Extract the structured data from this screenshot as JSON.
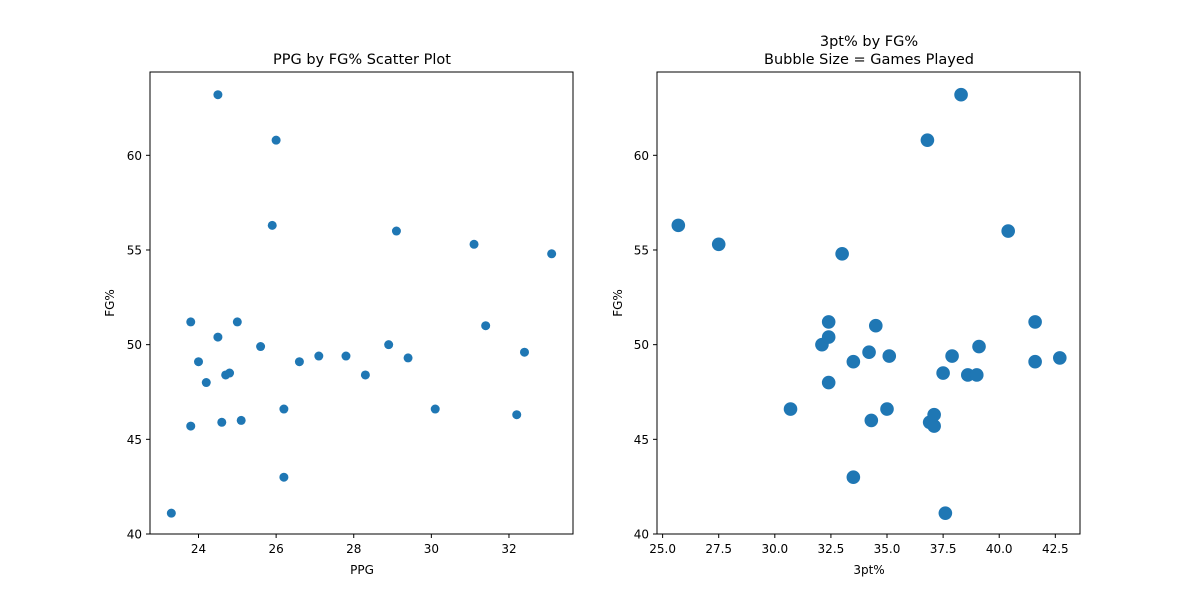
{
  "chart_data": [
    {
      "type": "scatter",
      "title": "PPG by FG% Scatter Plot",
      "xlabel": "PPG",
      "ylabel": "FG%",
      "xlim": [
        22.75,
        33.65
      ],
      "ylim": [
        40,
        64.4
      ],
      "xticks": [
        24,
        26,
        28,
        30,
        32
      ],
      "xtick_labels": [
        "24",
        "26",
        "28",
        "30",
        "32"
      ],
      "yticks": [
        40,
        45,
        50,
        55,
        60
      ],
      "ytick_labels": [
        "40",
        "45",
        "50",
        "55",
        "60"
      ],
      "color": "#1f77b4",
      "points": [
        {
          "x": 23.3,
          "y": 41.1
        },
        {
          "x": 23.8,
          "y": 45.7
        },
        {
          "x": 23.8,
          "y": 51.2
        },
        {
          "x": 24.0,
          "y": 49.1
        },
        {
          "x": 24.2,
          "y": 48.0
        },
        {
          "x": 24.5,
          "y": 50.4
        },
        {
          "x": 24.5,
          "y": 63.2
        },
        {
          "x": 24.6,
          "y": 45.9
        },
        {
          "x": 24.7,
          "y": 48.4
        },
        {
          "x": 24.8,
          "y": 48.5
        },
        {
          "x": 25.0,
          "y": 51.2
        },
        {
          "x": 25.1,
          "y": 46.0
        },
        {
          "x": 25.6,
          "y": 49.9
        },
        {
          "x": 25.9,
          "y": 56.3
        },
        {
          "x": 26.0,
          "y": 60.8
        },
        {
          "x": 26.2,
          "y": 46.6
        },
        {
          "x": 26.2,
          "y": 43.0
        },
        {
          "x": 26.6,
          "y": 49.1
        },
        {
          "x": 27.1,
          "y": 49.4
        },
        {
          "x": 27.8,
          "y": 49.4
        },
        {
          "x": 28.3,
          "y": 48.4
        },
        {
          "x": 28.9,
          "y": 50.0
        },
        {
          "x": 29.1,
          "y": 56.0
        },
        {
          "x": 29.4,
          "y": 49.3
        },
        {
          "x": 30.1,
          "y": 46.6
        },
        {
          "x": 31.1,
          "y": 55.3
        },
        {
          "x": 31.4,
          "y": 51.0
        },
        {
          "x": 32.2,
          "y": 46.3
        },
        {
          "x": 32.4,
          "y": 49.6
        },
        {
          "x": 33.1,
          "y": 54.8
        }
      ]
    },
    {
      "type": "scatter",
      "title": "3pt% by FG%\nBubble Size = Games Played",
      "title_lines": [
        "3pt% by FG%",
        "Bubble Size = Games Played"
      ],
      "xlabel": "3pt%",
      "ylabel": "FG%",
      "xlim": [
        24.75,
        43.6
      ],
      "ylim": [
        40,
        64.4
      ],
      "xticks": [
        25,
        27.5,
        30,
        32.5,
        35,
        37.5,
        40,
        42.5
      ],
      "xtick_labels": [
        "25.0",
        "27.5",
        "30.0",
        "32.5",
        "35.0",
        "37.5",
        "40.0",
        "42.5"
      ],
      "yticks": [
        40,
        45,
        50,
        55,
        60
      ],
      "ytick_labels": [
        "40",
        "45",
        "50",
        "55",
        "60"
      ],
      "color": "#1f77b4",
      "points": [
        {
          "x": 25.7,
          "y": 56.3
        },
        {
          "x": 27.5,
          "y": 55.3
        },
        {
          "x": 30.7,
          "y": 46.6
        },
        {
          "x": 32.1,
          "y": 50.0
        },
        {
          "x": 32.4,
          "y": 51.2
        },
        {
          "x": 32.4,
          "y": 50.4
        },
        {
          "x": 32.4,
          "y": 48.0
        },
        {
          "x": 33.0,
          "y": 54.8
        },
        {
          "x": 33.5,
          "y": 49.1
        },
        {
          "x": 33.5,
          "y": 43.0
        },
        {
          "x": 34.2,
          "y": 49.6
        },
        {
          "x": 34.3,
          "y": 46.0
        },
        {
          "x": 34.5,
          "y": 51.0
        },
        {
          "x": 35.0,
          "y": 46.6
        },
        {
          "x": 35.1,
          "y": 49.4
        },
        {
          "x": 36.8,
          "y": 60.8
        },
        {
          "x": 36.9,
          "y": 45.9
        },
        {
          "x": 37.1,
          "y": 45.7
        },
        {
          "x": 37.1,
          "y": 46.3
        },
        {
          "x": 37.5,
          "y": 48.5
        },
        {
          "x": 37.6,
          "y": 41.1
        },
        {
          "x": 37.9,
          "y": 49.4
        },
        {
          "x": 38.3,
          "y": 63.2
        },
        {
          "x": 38.6,
          "y": 48.4
        },
        {
          "x": 39.0,
          "y": 48.4
        },
        {
          "x": 39.1,
          "y": 49.9
        },
        {
          "x": 40.4,
          "y": 56.0
        },
        {
          "x": 41.6,
          "y": 51.2
        },
        {
          "x": 41.6,
          "y": 49.1
        },
        {
          "x": 42.7,
          "y": 49.3
        }
      ]
    }
  ]
}
